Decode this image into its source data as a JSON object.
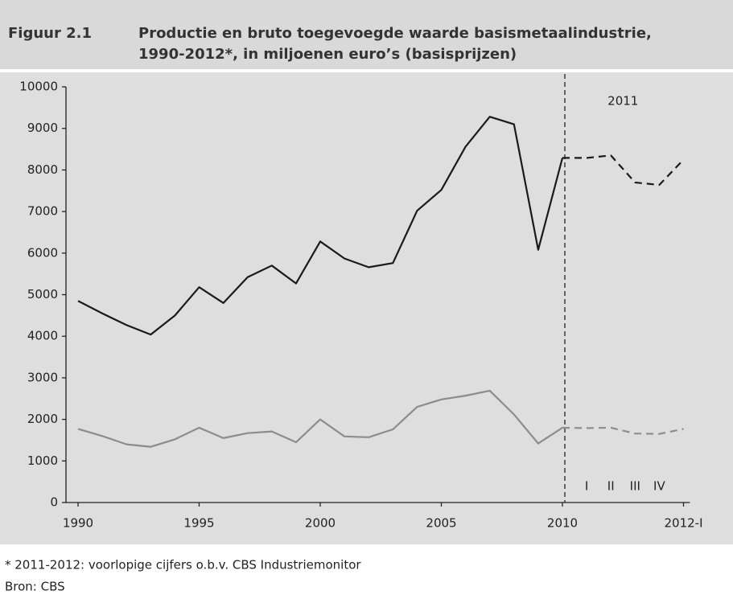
{
  "chart_data": {
    "type": "line",
    "figure_label": "Figuur 2.1",
    "title": [
      "Productie en bruto toegevoegde waarde basismetaalindustrie,",
      "1990-2012*, in miljoenen euro’s (basisprijzen)"
    ],
    "annotation": "2011",
    "quarter_labels": [
      "I",
      "II",
      "III",
      "IV"
    ],
    "categories": [
      "1990",
      null,
      null,
      null,
      null,
      "1995",
      null,
      null,
      null,
      null,
      "2000",
      null,
      null,
      null,
      null,
      "2005",
      null,
      null,
      null,
      null,
      "2010",
      null,
      null,
      null,
      null,
      "2012-I"
    ],
    "series": [
      {
        "color": "#1a1a1a",
        "dashed": false,
        "values": [
          4850,
          4550,
          4270,
          4040,
          4500,
          5180,
          4800,
          5420,
          5700,
          5270,
          6280,
          5870,
          5660,
          5760,
          7020,
          7520,
          8560,
          9280,
          9100,
          6080,
          8290,
          null,
          null,
          null,
          null,
          null
        ]
      },
      {
        "color": "#1a1a1a",
        "dashed": true,
        "values": [
          null,
          null,
          null,
          null,
          null,
          null,
          null,
          null,
          null,
          null,
          null,
          null,
          null,
          null,
          null,
          null,
          null,
          null,
          null,
          null,
          8290,
          8290,
          8350,
          7700,
          7640,
          8250
        ]
      },
      {
        "color": "#8c8c8c",
        "dashed": false,
        "values": [
          1770,
          1600,
          1400,
          1340,
          1520,
          1800,
          1550,
          1670,
          1710,
          1450,
          2000,
          1590,
          1570,
          1760,
          2300,
          2480,
          2570,
          2690,
          2120,
          1420,
          1800,
          null,
          null,
          null,
          null,
          null
        ]
      },
      {
        "color": "#8c8c8c",
        "dashed": true,
        "values": [
          null,
          null,
          null,
          null,
          null,
          null,
          null,
          null,
          null,
          null,
          null,
          null,
          null,
          null,
          null,
          null,
          null,
          null,
          null,
          null,
          1800,
          1790,
          1800,
          1660,
          1650,
          1770
        ]
      }
    ],
    "ylim": [
      0,
      10000
    ],
    "yticks": [
      0,
      1000,
      2000,
      3000,
      4000,
      5000,
      6000,
      7000,
      8000,
      9000,
      10000
    ],
    "notes": [
      "* 2011-2012: voorlopige cijfers o.b.v. CBS Industriemonitor",
      "Bron: CBS"
    ]
  }
}
